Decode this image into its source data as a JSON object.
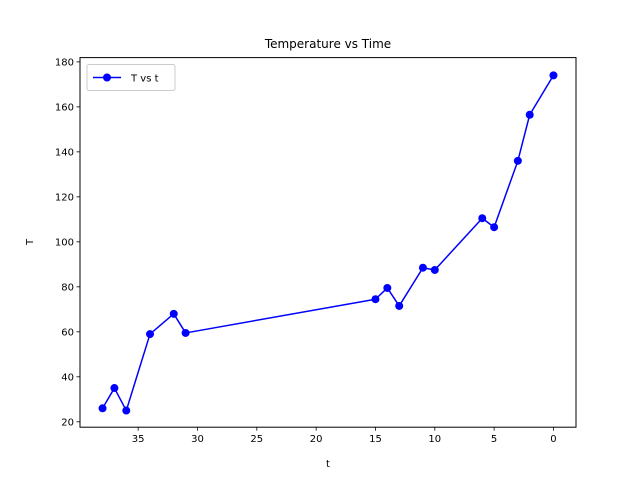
{
  "chart_data": {
    "type": "line",
    "title": "Temperature vs Time",
    "xlabel": "t",
    "ylabel": "T",
    "x_inverted": true,
    "xlim": [
      39.9,
      -1.9
    ],
    "ylim": [
      17.6,
      181.9
    ],
    "xticks": [
      35,
      30,
      25,
      20,
      15,
      10,
      5,
      0
    ],
    "yticks": [
      20,
      40,
      60,
      80,
      100,
      120,
      140,
      160,
      180
    ],
    "grid": false,
    "legend_position": "upper left",
    "series": [
      {
        "name": "T vs t",
        "color": "#0000ff",
        "marker": "circle",
        "points": [
          {
            "x": 38.0,
            "y": 26.0
          },
          {
            "x": 37.0,
            "y": 35.0
          },
          {
            "x": 36.0,
            "y": 25.0
          },
          {
            "x": 34.0,
            "y": 59.0
          },
          {
            "x": 32.0,
            "y": 68.0
          },
          {
            "x": 31.0,
            "y": 59.5
          },
          {
            "x": 15.0,
            "y": 74.5
          },
          {
            "x": 14.0,
            "y": 79.5
          },
          {
            "x": 13.0,
            "y": 71.5
          },
          {
            "x": 11.0,
            "y": 88.5
          },
          {
            "x": 10.0,
            "y": 87.5
          },
          {
            "x": 6.0,
            "y": 110.5
          },
          {
            "x": 5.0,
            "y": 106.5
          },
          {
            "x": 3.0,
            "y": 136.0
          },
          {
            "x": 2.0,
            "y": 156.5
          },
          {
            "x": 0.0,
            "y": 174.0
          }
        ]
      }
    ]
  }
}
